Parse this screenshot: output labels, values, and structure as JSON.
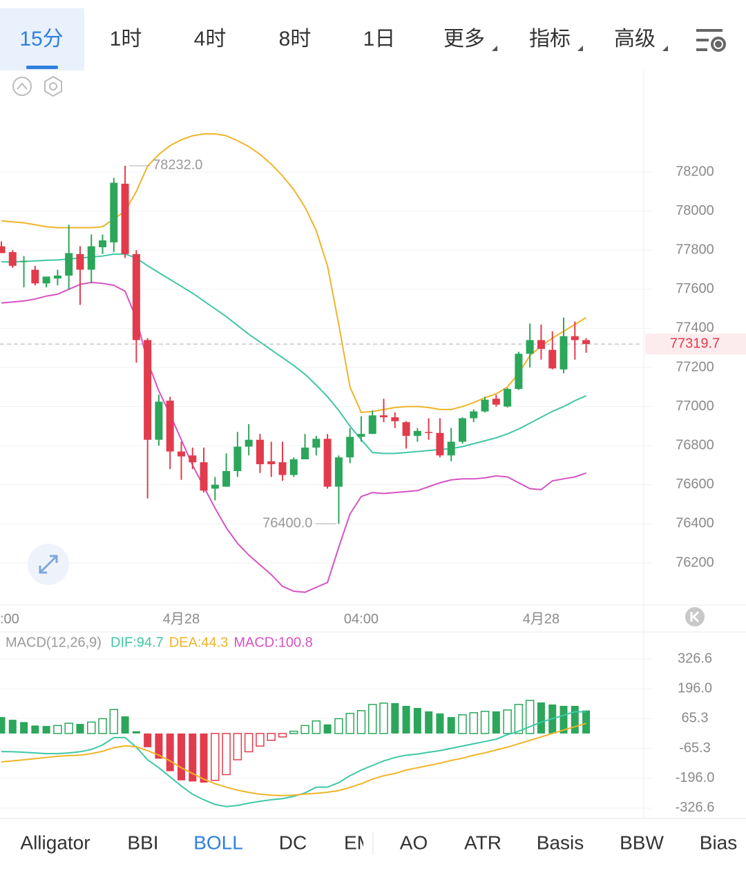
{
  "tabs": [
    "15分",
    "1时",
    "4时",
    "8时",
    "1日",
    "更多",
    "指标",
    "高级"
  ],
  "indicator_tabs": [
    "Alligator",
    "BBI",
    "BOLL",
    "DC",
    "EMA",
    "AO",
    "ATR",
    "Basis",
    "BBW",
    "Bias"
  ],
  "chart_data": [
    {
      "type": "candlestick",
      "categories": [
        ":00",
        null,
        null,
        null,
        null,
        null,
        null,
        null,
        null,
        null,
        null,
        null,
        null,
        null,
        null,
        null,
        "4月28",
        null,
        null,
        null,
        null,
        null,
        null,
        null,
        null,
        null,
        null,
        null,
        null,
        null,
        null,
        null,
        "04:00",
        null,
        null,
        null,
        null,
        null,
        null,
        null,
        null,
        null,
        null,
        null,
        null,
        null,
        null,
        null,
        "4月28",
        null,
        null,
        null,
        null
      ],
      "open": [
        77820,
        77790,
        77740,
        77700,
        77630,
        77655,
        77670,
        77780,
        77700,
        77815,
        77840,
        78140,
        77780,
        77340,
        76830,
        77030,
        76770,
        76750,
        76715,
        76580,
        76590,
        76670,
        76795,
        76830,
        76720,
        76715,
        76650,
        76730,
        76790,
        76835,
        76590,
        76740,
        76845,
        76860,
        76955,
        76945,
        76920,
        76850,
        76870,
        76865,
        76750,
        76820,
        76940,
        76975,
        77040,
        77000,
        77090,
        77270,
        77340,
        77290,
        77190,
        77360,
        77340
      ],
      "high": [
        77845,
        77800,
        77770,
        77720,
        77660,
        77700,
        77930,
        77820,
        77880,
        77880,
        78170,
        78232,
        77800,
        77350,
        77060,
        77050,
        76820,
        76790,
        76790,
        76640,
        76760,
        76870,
        76910,
        76860,
        76820,
        76820,
        76740,
        76860,
        76850,
        76860,
        76750,
        76890,
        76950,
        76980,
        77040,
        76970,
        76925,
        76890,
        76940,
        76940,
        76890,
        76945,
        76985,
        77050,
        77060,
        77095,
        77280,
        77425,
        77420,
        77385,
        77455,
        77435,
        77350
      ],
      "low": [
        77790,
        77710,
        77610,
        77620,
        77610,
        77620,
        77600,
        77520,
        77630,
        77780,
        77790,
        77760,
        77225,
        76530,
        76800,
        76680,
        76625,
        76680,
        76560,
        76520,
        76590,
        76640,
        76750,
        76660,
        76640,
        76620,
        76640,
        76730,
        76750,
        76580,
        76400,
        76710,
        76820,
        76860,
        76920,
        76890,
        76785,
        76820,
        76830,
        76740,
        76720,
        76810,
        76920,
        76970,
        77000,
        76995,
        77085,
        77200,
        77240,
        77190,
        77170,
        77240,
        77275
      ],
      "close": [
        77785,
        77720,
        77745,
        77630,
        77665,
        77670,
        77785,
        77700,
        77820,
        77850,
        78145,
        77780,
        77340,
        76830,
        77025,
        76770,
        76745,
        76715,
        76570,
        76600,
        76670,
        76795,
        76830,
        76705,
        76705,
        76650,
        76730,
        76790,
        76835,
        76590,
        76740,
        76845,
        76860,
        76955,
        76945,
        76925,
        76850,
        76875,
        76865,
        76750,
        76820,
        76940,
        76975,
        77035,
        77010,
        77090,
        77270,
        77340,
        77295,
        77195,
        77360,
        77340,
        77320
      ],
      "up_color": "#2ba65b",
      "down_color": "#e23b4c",
      "lines": [
        {
          "color": "#efb429",
          "values": [
            77950,
            77945,
            77940,
            77930,
            77920,
            77915,
            77915,
            77915,
            77915,
            77920,
            77960,
            78000,
            78100,
            78230,
            78290,
            78335,
            78365,
            78385,
            78395,
            78395,
            78385,
            78360,
            78330,
            78290,
            78240,
            78180,
            78110,
            78020,
            77900,
            77720,
            77420,
            77100,
            76970,
            76975,
            76985,
            76995,
            77000,
            77000,
            76995,
            76985,
            76985,
            77000,
            77020,
            77045,
            77065,
            77100,
            77170,
            77260,
            77310,
            77350,
            77385,
            77420,
            77455
          ]
        },
        {
          "color": "#3ec7a6",
          "values": [
            77740,
            77740,
            77742,
            77745,
            77748,
            77750,
            77755,
            77760,
            77765,
            77770,
            77780,
            77780,
            77760,
            77720,
            77685,
            77650,
            77615,
            77580,
            77540,
            77500,
            77460,
            77415,
            77370,
            77330,
            77290,
            77250,
            77210,
            77165,
            77110,
            77050,
            76980,
            76900,
            76830,
            76765,
            76760,
            76760,
            76765,
            76770,
            76775,
            76780,
            76785,
            76795,
            76810,
            76825,
            76840,
            76860,
            76885,
            76915,
            76945,
            76975,
            77000,
            77030,
            77055
          ]
        },
        {
          "color": "#d652c2",
          "values": [
            77530,
            77535,
            77540,
            77550,
            77565,
            77575,
            77600,
            77625,
            77635,
            77630,
            77620,
            77590,
            77450,
            77230,
            77080,
            76960,
            76830,
            76700,
            76590,
            76480,
            76380,
            76300,
            76240,
            76190,
            76140,
            76080,
            76055,
            76050,
            76075,
            76100,
            76280,
            76450,
            76540,
            76560,
            76555,
            76560,
            76565,
            76570,
            76590,
            76610,
            76625,
            76630,
            76630,
            76635,
            76645,
            76640,
            76610,
            76580,
            76575,
            76620,
            76630,
            76640,
            76660
          ]
        }
      ],
      "last_price": 77319.7,
      "high_marker": {
        "value": 78232,
        "label": "78232.0",
        "index": 11
      },
      "low_marker": {
        "value": 76400,
        "label": "76400.0",
        "index": 30
      },
      "ylim": [
        76000,
        78700
      ],
      "yticks": [
        76200,
        76400,
        76600,
        76800,
        77000,
        77200,
        77400,
        77600,
        77800,
        78000,
        78200
      ],
      "grid": true
    },
    {
      "type": "macd",
      "title": "MACD(12,26,9)",
      "up_color": "#2ba65b",
      "down_color": "#e23b4c",
      "series": [
        {
          "name": "DIF:94.7",
          "color": "#3ec7a6",
          "values": [
            -79,
            -80,
            -82,
            -85,
            -88,
            -88,
            -85,
            -80,
            -70,
            -50,
            -18,
            -18,
            -60,
            -115,
            -150,
            -190,
            -230,
            -266,
            -290,
            -311,
            -320,
            -315,
            -305,
            -297,
            -290,
            -285,
            -275,
            -260,
            -235,
            -235,
            -215,
            -185,
            -160,
            -140,
            -120,
            -105,
            -95,
            -90,
            -82,
            -75,
            -65,
            -55,
            -45,
            -35,
            -25,
            -5,
            10,
            30,
            50,
            65,
            80,
            95,
            94.7
          ]
        },
        {
          "name": "DEA:44.3",
          "color": "#efb429",
          "values": [
            -124,
            -120,
            -115,
            -110,
            -105,
            -100,
            -97,
            -95,
            -88,
            -78,
            -62,
            -54,
            -58,
            -75,
            -95,
            -120,
            -150,
            -175,
            -200,
            -220,
            -235,
            -248,
            -258,
            -266,
            -270,
            -272,
            -270,
            -265,
            -262,
            -257,
            -250,
            -236,
            -220,
            -200,
            -185,
            -175,
            -160,
            -150,
            -140,
            -130,
            -118,
            -108,
            -95,
            -85,
            -72,
            -60,
            -45,
            -30,
            -15,
            0,
            15,
            30,
            44.3
          ]
        },
        {
          "name": "MACD:100.8",
          "color": "#d652c2",
          "type": "histogram",
          "values": [
            72,
            60,
            50,
            35,
            33,
            35,
            45,
            42,
            50,
            65,
            105,
            75,
            10,
            -60,
            -110,
            -165,
            -205,
            -210,
            -215,
            -205,
            -180,
            -115,
            -80,
            -55,
            -30,
            -15,
            10,
            35,
            55,
            40,
            65,
            88,
            100,
            127,
            133,
            133,
            121,
            112,
            97,
            88,
            72,
            82,
            91,
            97,
            97,
            103,
            127,
            145,
            136,
            127,
            121,
            121,
            100.8
          ]
        }
      ],
      "ylim": [
        -360,
        430
      ],
      "yticks": [
        -326.6,
        {
          "value": -196,
          "label": "-196.0"
        },
        -65.3,
        65.3,
        {
          "value": 196,
          "label": "196.0"
        },
        326.6
      ],
      "grid": true
    }
  ]
}
